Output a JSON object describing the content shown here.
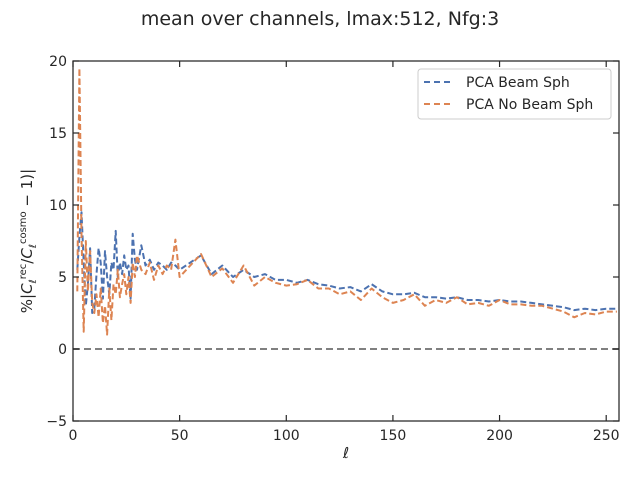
{
  "chart_data": {
    "type": "line",
    "title": "mean over channels, lmax:512, Nfg:3",
    "xlabel": "ℓ",
    "ylabel": "%|C_ℓ^rec/C_ℓ^cosmo − 1)|",
    "xlim": [
      0,
      256
    ],
    "ylim": [
      -5,
      20
    ],
    "xticks": [
      0,
      50,
      100,
      150,
      200,
      250
    ],
    "yticks": [
      -5,
      0,
      5,
      10,
      15,
      20
    ],
    "xtick_labels": [
      "0",
      "50",
      "100",
      "150",
      "200",
      "250"
    ],
    "ytick_labels": [
      "−5",
      "0",
      "5",
      "10",
      "15",
      "20"
    ],
    "grid": false,
    "legend_position": "top-right",
    "reference_line": {
      "y": 0,
      "color": "#808080",
      "style": "dashed"
    },
    "series": [
      {
        "name": "PCA Beam Sph",
        "color": "#4c72b0",
        "style": "dashed",
        "x": [
          2,
          3,
          4,
          5,
          6,
          7,
          8,
          9,
          10,
          11,
          12,
          13,
          14,
          15,
          16,
          17,
          18,
          19,
          20,
          21,
          22,
          23,
          24,
          25,
          26,
          27,
          28,
          29,
          30,
          32,
          34,
          36,
          38,
          40,
          42,
          44,
          46,
          48,
          50,
          55,
          60,
          65,
          70,
          75,
          80,
          85,
          90,
          95,
          100,
          105,
          110,
          115,
          120,
          125,
          130,
          135,
          140,
          145,
          150,
          155,
          160,
          165,
          170,
          175,
          180,
          185,
          190,
          195,
          200,
          205,
          210,
          215,
          220,
          225,
          230,
          235,
          240,
          245,
          250,
          255
        ],
        "y": [
          5.5,
          7.8,
          9.5,
          6.0,
          3.0,
          4.5,
          7.0,
          2.5,
          2.8,
          5.2,
          7.0,
          6.0,
          3.5,
          6.8,
          5.0,
          3.8,
          6.0,
          5.5,
          8.2,
          5.0,
          6.0,
          5.2,
          6.5,
          5.5,
          5.8,
          3.5,
          8.0,
          6.2,
          5.5,
          7.2,
          5.8,
          6.2,
          5.5,
          6.0,
          5.8,
          5.5,
          6.0,
          5.8,
          5.5,
          6.0,
          6.5,
          5.2,
          5.8,
          5.0,
          5.5,
          5.0,
          5.2,
          4.8,
          4.8,
          4.6,
          4.8,
          4.5,
          4.4,
          4.2,
          4.3,
          4.0,
          4.5,
          4.0,
          3.8,
          3.8,
          3.9,
          3.6,
          3.6,
          3.5,
          3.6,
          3.4,
          3.4,
          3.3,
          3.4,
          3.3,
          3.3,
          3.2,
          3.1,
          3.0,
          2.9,
          2.7,
          2.8,
          2.7,
          2.8,
          2.8
        ]
      },
      {
        "name": "PCA No Beam Sph",
        "color": "#dd8452",
        "style": "dashed",
        "x": [
          2,
          3,
          4,
          5,
          6,
          7,
          8,
          9,
          10,
          11,
          12,
          13,
          14,
          15,
          16,
          17,
          18,
          19,
          20,
          21,
          22,
          23,
          24,
          25,
          26,
          27,
          28,
          29,
          30,
          32,
          34,
          36,
          38,
          40,
          42,
          44,
          46,
          48,
          50,
          55,
          60,
          65,
          70,
          75,
          80,
          85,
          90,
          95,
          100,
          105,
          110,
          115,
          120,
          125,
          130,
          135,
          140,
          145,
          150,
          155,
          160,
          165,
          170,
          175,
          180,
          185,
          190,
          195,
          200,
          205,
          210,
          215,
          220,
          225,
          230,
          235,
          240,
          245,
          250,
          255
        ],
        "y": [
          4.0,
          19.5,
          8.0,
          1.2,
          7.5,
          4.0,
          6.8,
          3.2,
          2.5,
          3.8,
          2.2,
          4.2,
          1.8,
          3.0,
          1.0,
          4.2,
          2.0,
          4.5,
          3.8,
          5.5,
          3.6,
          4.5,
          5.2,
          3.8,
          5.0,
          3.2,
          6.0,
          5.0,
          6.5,
          5.5,
          5.2,
          6.0,
          4.8,
          5.8,
          5.2,
          5.8,
          5.5,
          7.6,
          5.0,
          5.8,
          6.6,
          5.0,
          5.6,
          4.6,
          5.8,
          4.4,
          5.0,
          4.6,
          4.4,
          4.5,
          4.8,
          4.2,
          4.2,
          3.8,
          4.0,
          3.4,
          4.2,
          3.6,
          3.2,
          3.4,
          3.8,
          3.0,
          3.4,
          3.2,
          3.6,
          3.1,
          3.2,
          3.0,
          3.4,
          3.1,
          3.1,
          3.0,
          3.0,
          2.8,
          2.6,
          2.2,
          2.5,
          2.4,
          2.6,
          2.6
        ]
      }
    ]
  }
}
